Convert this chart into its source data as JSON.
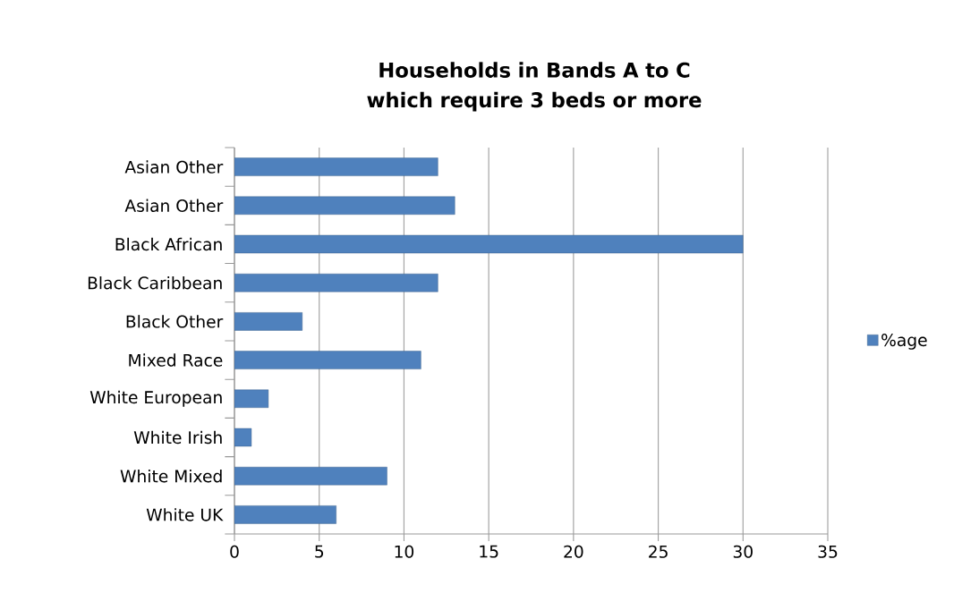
{
  "chart_data": {
    "type": "bar",
    "orientation": "horizontal",
    "title": "Households in Bands A to C which require 3 beds or more",
    "categories": [
      "Asian Other",
      "Asian Other",
      "Black African",
      "Black Caribbean",
      "Black Other",
      "Mixed Race",
      "White European",
      "White Irish",
      "White Mixed",
      "White UK"
    ],
    "series": [
      {
        "name": "%age",
        "color": "#4f81bd",
        "values": [
          12,
          13,
          30,
          12,
          4,
          11,
          2,
          1,
          9,
          6
        ]
      }
    ],
    "xlim": [
      0,
      35
    ],
    "xticks": [
      0,
      5,
      10,
      15,
      20,
      25,
      30,
      35
    ],
    "grid": "x",
    "legend": "right"
  }
}
